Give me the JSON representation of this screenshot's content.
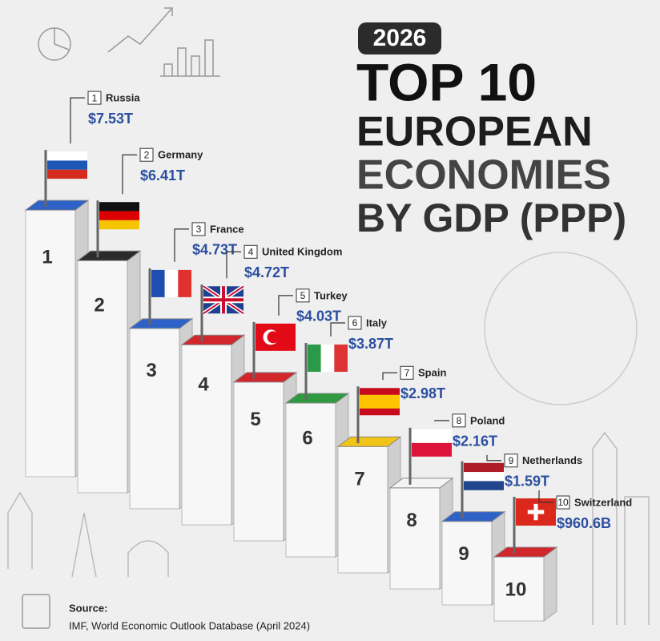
{
  "chart_data": {
    "type": "bar",
    "year": "2026",
    "title_lines": [
      "TOP 10",
      "EUROPEAN",
      "ECONOMIES",
      "BY GDP (PPP)"
    ],
    "ranks": [
      1,
      2,
      3,
      4,
      5,
      6,
      7,
      8,
      9,
      10
    ],
    "categories": [
      "Russia",
      "Germany",
      "France",
      "United Kingdom",
      "Turkey",
      "Italy",
      "Spain",
      "Poland",
      "Netherlands",
      "Switzerland"
    ],
    "values": [
      7.53,
      6.41,
      4.73,
      4.72,
      4.03,
      3.87,
      2.98,
      2.16,
      1.59,
      0.9606
    ],
    "value_labels": [
      "$7.53T",
      "$6.41T",
      "$4.73T",
      "$4.72T",
      "$4.03T",
      "$3.87T",
      "$2.98T",
      "$2.16T",
      "$1.59T",
      "$960.6B"
    ],
    "colors": [
      "#2f62c7",
      "#2b2b2b",
      "#2f62c7",
      "#d0262c",
      "#d0262c",
      "#2f9a3f",
      "#f2c418",
      "#f4f4f4",
      "#2f62c7",
      "#d0262c"
    ],
    "source_label": "Source:",
    "source": "IMF, World Economic Outlook Database (April 2024)"
  }
}
